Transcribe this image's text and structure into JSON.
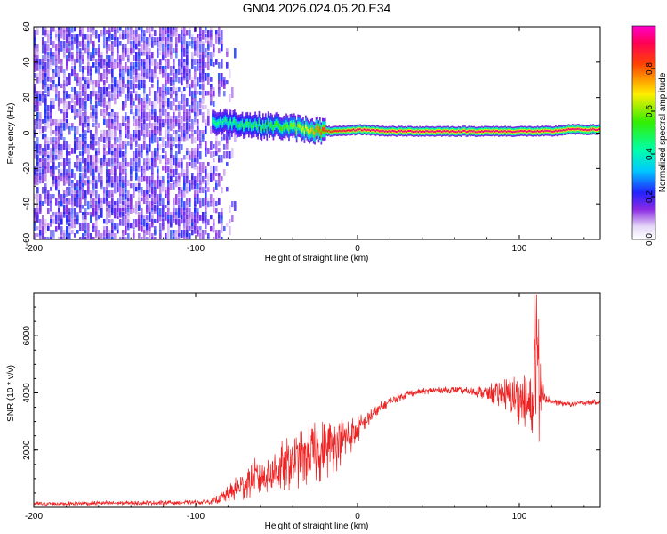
{
  "title": "GN04.2026.024.05.20.E34",
  "colors": {
    "snr_line": "#ee2222",
    "noise": "#7a2be0",
    "axis": "#000000"
  },
  "chart_data": [
    {
      "type": "heatmap",
      "title": "GN04.2026.024.05.20.E34",
      "xlabel": "Height of straight line (km)",
      "ylabel": "Frequency (Hz)",
      "xlim": [
        -200,
        150
      ],
      "ylim": [
        -60,
        60
      ],
      "x_ticks": [
        "-200",
        "-100",
        "0",
        "100"
      ],
      "y_ticks": [
        "-60",
        "-40",
        "-20",
        "0",
        "20",
        "40",
        "60"
      ],
      "grid": false,
      "noise_region": {
        "x_range": [
          -200,
          -80
        ],
        "typical_amplitude": 0.2
      },
      "signal_ridge": [
        {
          "x": -90,
          "freq": 6,
          "amplitude": 0.45
        },
        {
          "x": -80,
          "freq": 6,
          "amplitude": 0.45
        },
        {
          "x": -70,
          "freq": 5,
          "amplitude": 0.5
        },
        {
          "x": -60,
          "freq": 4,
          "amplitude": 0.5
        },
        {
          "x": -50,
          "freq": 4,
          "amplitude": 0.55
        },
        {
          "x": -40,
          "freq": 3,
          "amplitude": 0.6
        },
        {
          "x": -30,
          "freq": 2,
          "amplitude": 0.7
        },
        {
          "x": -20,
          "freq": 1,
          "amplitude": 0.85
        },
        {
          "x": -10,
          "freq": 1,
          "amplitude": 0.9
        },
        {
          "x": 0,
          "freq": 2,
          "amplitude": 0.95
        },
        {
          "x": 20,
          "freq": 1,
          "amplitude": 0.95
        },
        {
          "x": 40,
          "freq": 1,
          "amplitude": 0.95
        },
        {
          "x": 60,
          "freq": 1,
          "amplitude": 0.95
        },
        {
          "x": 80,
          "freq": 1,
          "amplitude": 0.95
        },
        {
          "x": 100,
          "freq": 1,
          "amplitude": 0.95
        },
        {
          "x": 120,
          "freq": 1,
          "amplitude": 0.95
        },
        {
          "x": 130,
          "freq": 2,
          "amplitude": 0.95
        },
        {
          "x": 150,
          "freq": 2,
          "amplitude": 0.95
        }
      ],
      "colorbar": {
        "label": "Normalized spectral amplitude",
        "range": [
          0,
          1
        ],
        "ticks": [
          "0.0",
          "0.2",
          "0.4",
          "0.6",
          "0.8"
        ]
      }
    },
    {
      "type": "line",
      "xlabel": "Height of straight line (km)",
      "ylabel": "SNR (10 * v/v)",
      "xlim": [
        -200,
        150
      ],
      "ylim": [
        0,
        7500
      ],
      "x_ticks": [
        "-200",
        "-100",
        "0",
        "100"
      ],
      "y_ticks": [
        "2000",
        "4000",
        "6000"
      ],
      "grid": false,
      "series": [
        {
          "name": "SNR",
          "x": [
            -200,
            -150,
            -100,
            -90,
            -80,
            -70,
            -60,
            -50,
            -40,
            -30,
            -20,
            -10,
            0,
            10,
            20,
            30,
            40,
            50,
            60,
            70,
            80,
            90,
            100,
            105,
            108,
            110,
            112,
            115,
            120,
            130,
            140,
            150
          ],
          "mean": [
            120,
            150,
            170,
            200,
            450,
            800,
            1100,
            1300,
            1600,
            1800,
            2000,
            2300,
            2700,
            3300,
            3700,
            3950,
            4050,
            4100,
            4100,
            4050,
            4000,
            3950,
            3800,
            3500,
            3300,
            3100,
            3900,
            3950,
            3700,
            3600,
            3650,
            3700
          ],
          "amp": [
            80,
            80,
            80,
            100,
            300,
            600,
            800,
            900,
            1000,
            1100,
            1100,
            900,
            500,
            300,
            150,
            150,
            120,
            120,
            120,
            150,
            300,
            600,
            900,
            1100,
            1300,
            1500,
            1800,
            300,
            120,
            100,
            100,
            100
          ]
        }
      ]
    }
  ]
}
